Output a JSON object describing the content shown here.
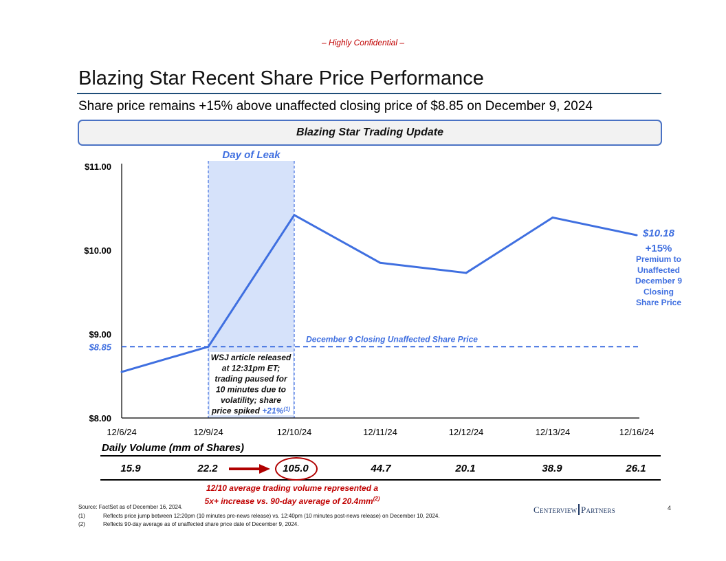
{
  "header": {
    "confidential": "– Highly Confidential –",
    "title": "Blazing Star Recent Share Price Performance",
    "subtitle": "Share price remains +15% above unaffected closing price of $8.85 on December 9, 2024",
    "banner": "Blazing Star Trading Update"
  },
  "chart_data": {
    "type": "line",
    "title": "Blazing Star Trading Update",
    "categories": [
      "12/6/24",
      "12/9/24",
      "12/10/24",
      "12/11/24",
      "12/12/24",
      "12/13/24",
      "12/16/24"
    ],
    "series": [
      {
        "name": "Share Price",
        "color": "#3f6fe0",
        "values": [
          8.55,
          8.85,
          10.42,
          9.85,
          9.73,
          10.39,
          10.18
        ]
      }
    ],
    "ylim": [
      8.0,
      11.0
    ],
    "yticks": [
      {
        "value": 8.0,
        "label": "$8.00"
      },
      {
        "value": 9.0,
        "label": "$9.00"
      },
      {
        "value": 10.0,
        "label": "$10.00"
      },
      {
        "value": 11.0,
        "label": "$11.00"
      }
    ],
    "reference_line": {
      "value": 8.85,
      "label": "$8.85",
      "text": "December 9 Closing Unaffected Share Price",
      "color": "#3f6fe0"
    },
    "highlight": {
      "from": "12/9/24",
      "to": "12/10/24",
      "label": "Day of Leak",
      "color": "#d6e2fa"
    },
    "annotations": {
      "leak_lines": [
        "WSJ article released",
        "at 12:31pm ET;",
        "trading paused for",
        "10 minutes due to",
        "volatility; share"
      ],
      "leak_last_prefix": "price spiked ",
      "leak_last_value": "+21%",
      "leak_last_sup": "(1)",
      "end_price": "$10.18",
      "premium_pct": "+15%",
      "premium_lines": [
        "Premium to",
        "Unaffected",
        "December 9",
        "Closing",
        "Share Price"
      ]
    }
  },
  "volume": {
    "title": "Daily Volume (mm of Shares)",
    "values": [
      "15.9",
      "22.2",
      "105.0",
      "44.7",
      "20.1",
      "38.9",
      "26.1"
    ],
    "note_line1": "12/10 average trading volume represented a",
    "note_line2": "5x+ increase vs. 90-day average of 20.4mm",
    "note_sup": "(2)"
  },
  "footer": {
    "source": "Source: FactSet as of December 16, 2024.",
    "footnotes": [
      {
        "num": "(1)",
        "text": "Reflects price jump between 12:20pm (10 minutes pre-news release) vs. 12:40pm (10 minutes post-news release) on December 10, 2024."
      },
      {
        "num": "(2)",
        "text": "Reflects 90-day average as of unaffected share price date of December 9, 2024."
      }
    ],
    "logo_left": "Centerview",
    "logo_right": "Partners",
    "page": "4"
  },
  "colors": {
    "accent": "#3f6fe0",
    "highlight": "#d6e2fa",
    "red": "#c00000",
    "navy": "#1f4e79"
  }
}
